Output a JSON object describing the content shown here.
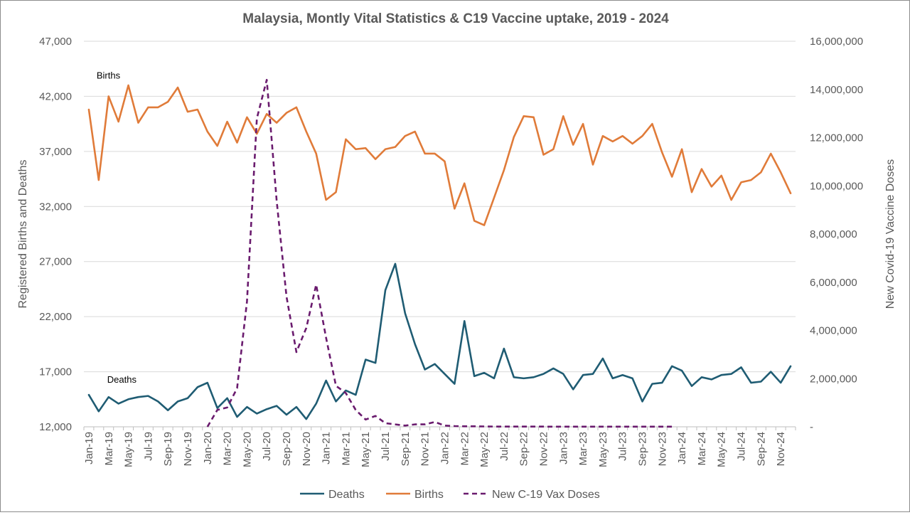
{
  "chart_data": {
    "type": "line",
    "title": "Malaysia, Montly Vital Statistics & C19 Vaccine uptake, 2019 - 2024",
    "ylabel": "Registered Births and Deaths",
    "y2label": "New Covid-19 Vaccine Doses",
    "ylim": [
      12000,
      47000
    ],
    "y2lim": [
      0,
      16000000
    ],
    "yticks": [
      12000,
      17000,
      22000,
      27000,
      32000,
      37000,
      42000,
      47000
    ],
    "yticklabels": [
      "12,000",
      "17,000",
      "22,000",
      "27,000",
      "32,000",
      "37,000",
      "42,000",
      "47,000"
    ],
    "y2ticks": [
      0,
      2000000,
      4000000,
      6000000,
      8000000,
      10000000,
      12000000,
      14000000,
      16000000
    ],
    "y2ticklabels": [
      "-",
      "2,000,000",
      "4,000,000",
      "6,000,000",
      "8,000,000",
      "10,000,000",
      "12,000,000",
      "14,000,000",
      "16,000,000"
    ],
    "xticklabels": [
      "Jan-19",
      "Mar-19",
      "May-19",
      "Jul-19",
      "Sep-19",
      "Nov-19",
      "Jan-20",
      "Mar-20",
      "May-20",
      "Jul-20",
      "Sep-20",
      "Nov-20",
      "Jan-21",
      "Mar-21",
      "May-21",
      "Jul-21",
      "Sep-21",
      "Nov-21",
      "Jan-22",
      "Mar-22",
      "May-22",
      "Jul-22",
      "Sep-22",
      "Nov-22",
      "Jan-23",
      "Mar-23",
      "May-23",
      "Jul-23",
      "Sep-23",
      "Nov-23",
      "Jan-24",
      "Mar-24",
      "May-24",
      "Jul-24",
      "Sep-24",
      "Nov-24"
    ],
    "legend_position": "bottom",
    "grid": true,
    "annotations": [
      {
        "text": "Births",
        "series": "Births",
        "month_index": 1,
        "value": 43600
      },
      {
        "text": "Deaths",
        "series": "Deaths",
        "month_index": 2,
        "value": 16000
      }
    ],
    "series": [
      {
        "name": "Deaths",
        "color": "#1f5c73",
        "axis": "left",
        "dash": "solid",
        "values": [
          14900,
          13400,
          14700,
          14100,
          14500,
          14700,
          14800,
          14300,
          13500,
          14300,
          14600,
          15600,
          16000,
          13700,
          14600,
          12900,
          13800,
          13200,
          13600,
          13900,
          13100,
          13800,
          12700,
          14100,
          16200,
          14300,
          15300,
          14900,
          18100,
          17800,
          24400,
          26800,
          22300,
          19500,
          17200,
          17700,
          16800,
          15900,
          21600,
          16600,
          16900,
          16400,
          19100,
          16500,
          16400,
          16500,
          16800,
          17300,
          16800,
          15400,
          16700,
          16800,
          18200,
          16400,
          16700,
          16400,
          14300,
          15900,
          16000,
          17500,
          17100,
          15700,
          16500,
          16300,
          16700,
          16800,
          17400,
          16000,
          16100,
          17000,
          16000,
          17500
        ]
      },
      {
        "name": "Births",
        "color": "#e07b39",
        "axis": "left",
        "dash": "solid",
        "values": [
          40800,
          34400,
          42000,
          39700,
          43000,
          39600,
          41000,
          41000,
          41500,
          42800,
          40600,
          40800,
          38800,
          37500,
          39700,
          37800,
          40100,
          38600,
          40400,
          39600,
          40500,
          41000,
          38800,
          36800,
          32600,
          33300,
          38100,
          37200,
          37300,
          36300,
          37200,
          37400,
          38400,
          38800,
          36800,
          36800,
          36100,
          31800,
          34100,
          30700,
          30300,
          32800,
          35300,
          38300,
          40200,
          40100,
          36700,
          37200,
          40200,
          37600,
          39500,
          35800,
          38400,
          37900,
          38400,
          37700,
          38400,
          39500,
          36900,
          34700,
          37200,
          33300,
          35400,
          33800,
          34800,
          32600,
          34200,
          34400,
          35100,
          36800,
          35100,
          33200
        ]
      },
      {
        "name": "New C-19 Vax Doses",
        "color": "#6a1b6e",
        "axis": "right",
        "dash": "dashed",
        "values": [
          null,
          null,
          null,
          null,
          null,
          null,
          null,
          null,
          null,
          null,
          null,
          null,
          0,
          700000,
          800000,
          1600000,
          5200000,
          12800000,
          14400000,
          9400000,
          5400000,
          3100000,
          4100000,
          5900000,
          3700000,
          1700000,
          1400000,
          700000,
          300000,
          450000,
          150000,
          100000,
          50000,
          100000,
          100000,
          200000,
          50000,
          30000,
          20000,
          20000,
          15000,
          10000,
          10000,
          10000,
          10000,
          8000,
          8000,
          5000,
          5000,
          5000,
          5000,
          5000,
          5000,
          5000,
          5000,
          5000,
          5000,
          5000,
          5000,
          5000
        ]
      }
    ]
  }
}
